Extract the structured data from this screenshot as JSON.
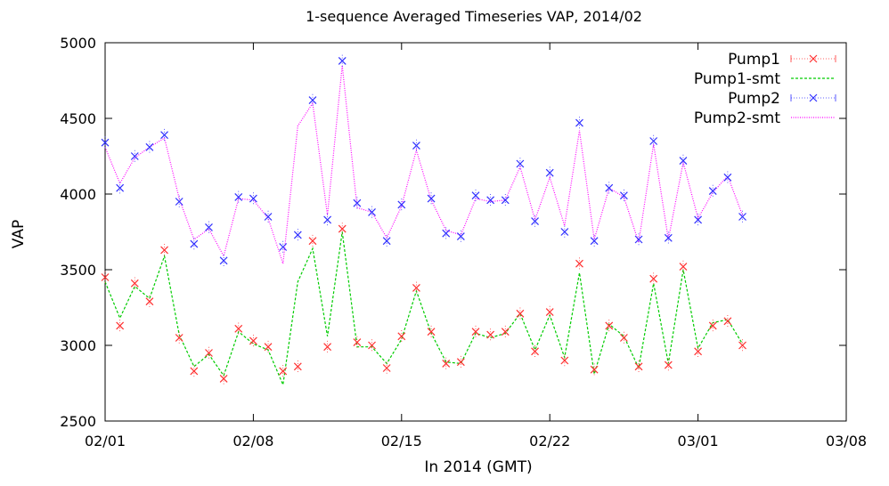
{
  "chart_data": {
    "type": "line",
    "title": "1-sequence Averaged Timeseries VAP, 2014/02",
    "xlabel": "In 2014 (GMT)",
    "ylabel": "VAP",
    "xlim": [
      "2014-02-01",
      "2014-03-08"
    ],
    "ylim": [
      2500,
      5000
    ],
    "x_ticks": [
      "02/01",
      "02/08",
      "02/15",
      "02/22",
      "03/01",
      "03/08"
    ],
    "y_ticks": [
      2500,
      3000,
      3500,
      4000,
      4500,
      5000
    ],
    "grid": false,
    "legend_position": "top-right",
    "series": [
      {
        "name": "Pump1",
        "style": "points-with-errorbars",
        "color": "#ff3030",
        "marker": "x",
        "x": [
          "2014-02-01 00:00",
          "2014-02-01 16:48",
          "2014-02-02 09:36",
          "2014-02-03 02:24",
          "2014-02-03 19:12",
          "2014-02-04 12:00",
          "2014-02-05 04:48",
          "2014-02-05 21:36",
          "2014-02-06 14:24",
          "2014-02-07 07:12",
          "2014-02-08 00:00",
          "2014-02-08 16:48",
          "2014-02-09 09:36",
          "2014-02-10 02:24",
          "2014-02-10 19:12",
          "2014-02-11 12:00",
          "2014-02-12 04:48",
          "2014-02-12 21:36",
          "2014-02-13 14:24",
          "2014-02-14 07:12",
          "2014-02-15 00:00",
          "2014-02-15 16:48",
          "2014-02-16 09:36",
          "2014-02-17 02:24",
          "2014-02-17 19:12",
          "2014-02-18 12:00",
          "2014-02-19 04:48",
          "2014-02-19 21:36",
          "2014-02-20 14:24",
          "2014-02-21 07:12",
          "2014-02-22 00:00",
          "2014-02-22 16:48",
          "2014-02-23 09:36",
          "2014-02-24 02:24",
          "2014-02-24 19:12",
          "2014-02-25 12:00",
          "2014-02-26 04:48",
          "2014-02-26 21:36",
          "2014-02-27 14:24",
          "2014-02-28 07:12",
          "2014-03-01 00:00",
          "2014-03-01 16:48",
          "2014-03-02 09:36",
          "2014-03-03 02:24"
        ],
        "values": [
          3450,
          3130,
          3410,
          3290,
          3630,
          3050,
          2830,
          2950,
          2780,
          3110,
          3030,
          2990,
          2830,
          2860,
          3690,
          2990,
          3770,
          3020,
          3000,
          2850,
          3060,
          3380,
          3090,
          2880,
          2890,
          3090,
          3070,
          3090,
          3210,
          2960,
          3220,
          2900,
          3540,
          2840,
          3130,
          3050,
          2860,
          3440,
          2870,
          3520,
          2960,
          3130,
          3160,
          3000
        ]
      },
      {
        "name": "Pump1-smt",
        "style": "dashed-line",
        "color": "#00cc00",
        "x": [
          "2014-02-01 00:00",
          "2014-02-01 16:48",
          "2014-02-02 09:36",
          "2014-02-03 02:24",
          "2014-02-03 19:12",
          "2014-02-04 12:00",
          "2014-02-05 04:48",
          "2014-02-05 21:36",
          "2014-02-06 14:24",
          "2014-02-07 07:12",
          "2014-02-08 00:00",
          "2014-02-08 16:48",
          "2014-02-09 09:36",
          "2014-02-10 02:24",
          "2014-02-10 19:12",
          "2014-02-11 12:00",
          "2014-02-12 04:48",
          "2014-02-12 21:36",
          "2014-02-13 14:24",
          "2014-02-14 07:12",
          "2014-02-15 00:00",
          "2014-02-15 16:48",
          "2014-02-16 09:36",
          "2014-02-17 02:24",
          "2014-02-17 19:12",
          "2014-02-18 12:00",
          "2014-02-19 04:48",
          "2014-02-19 21:36",
          "2014-02-20 14:24",
          "2014-02-21 07:12",
          "2014-02-22 00:00",
          "2014-02-22 16:48",
          "2014-02-23 09:36",
          "2014-02-24 02:24",
          "2014-02-24 19:12",
          "2014-02-25 12:00",
          "2014-02-26 04:48",
          "2014-02-26 21:36",
          "2014-02-27 14:24",
          "2014-02-28 07:12",
          "2014-03-01 00:00",
          "2014-03-01 16:48",
          "2014-03-02 09:36",
          "2014-03-03 02:24"
        ],
        "values": [
          3420,
          3180,
          3390,
          3310,
          3590,
          3070,
          2860,
          2940,
          2800,
          3090,
          3010,
          2970,
          2740,
          3420,
          3640,
          3060,
          3750,
          2990,
          2990,
          2880,
          3040,
          3360,
          3080,
          2890,
          2880,
          3080,
          3050,
          3080,
          3210,
          2970,
          3200,
          2920,
          3480,
          2810,
          3140,
          3060,
          2850,
          3410,
          2880,
          3500,
          2980,
          3150,
          3170,
          3010
        ]
      },
      {
        "name": "Pump2",
        "style": "points-with-errorbars",
        "color": "#3030ff",
        "marker": "x",
        "x": [
          "2014-02-01 00:00",
          "2014-02-01 16:48",
          "2014-02-02 09:36",
          "2014-02-03 02:24",
          "2014-02-03 19:12",
          "2014-02-04 12:00",
          "2014-02-05 04:48",
          "2014-02-05 21:36",
          "2014-02-06 14:24",
          "2014-02-07 07:12",
          "2014-02-08 00:00",
          "2014-02-08 16:48",
          "2014-02-09 09:36",
          "2014-02-10 02:24",
          "2014-02-10 19:12",
          "2014-02-11 12:00",
          "2014-02-12 04:48",
          "2014-02-12 21:36",
          "2014-02-13 14:24",
          "2014-02-14 07:12",
          "2014-02-15 00:00",
          "2014-02-15 16:48",
          "2014-02-16 09:36",
          "2014-02-17 02:24",
          "2014-02-17 19:12",
          "2014-02-18 12:00",
          "2014-02-19 04:48",
          "2014-02-19 21:36",
          "2014-02-20 14:24",
          "2014-02-21 07:12",
          "2014-02-22 00:00",
          "2014-02-22 16:48",
          "2014-02-23 09:36",
          "2014-02-24 02:24",
          "2014-02-24 19:12",
          "2014-02-25 12:00",
          "2014-02-26 04:48",
          "2014-02-26 21:36",
          "2014-02-27 14:24",
          "2014-02-28 07:12",
          "2014-03-01 00:00",
          "2014-03-01 16:48",
          "2014-03-02 09:36",
          "2014-03-03 02:24"
        ],
        "values": [
          4340,
          4040,
          4250,
          4310,
          4390,
          3950,
          3670,
          3780,
          3560,
          3980,
          3970,
          3850,
          3650,
          3730,
          4620,
          3830,
          4880,
          3940,
          3880,
          3690,
          3930,
          4320,
          3970,
          3740,
          3720,
          3990,
          3960,
          3960,
          4200,
          3820,
          4140,
          3750,
          4470,
          3690,
          4040,
          3990,
          3700,
          4350,
          3710,
          4220,
          3830,
          4020,
          4110,
          3850
        ]
      },
      {
        "name": "Pump2-smt",
        "style": "dotted-line",
        "color": "#ff00ff",
        "x": [
          "2014-02-01 00:00",
          "2014-02-01 16:48",
          "2014-02-02 09:36",
          "2014-02-03 02:24",
          "2014-02-03 19:12",
          "2014-02-04 12:00",
          "2014-02-05 04:48",
          "2014-02-05 21:36",
          "2014-02-06 14:24",
          "2014-02-07 07:12",
          "2014-02-08 00:00",
          "2014-02-08 16:48",
          "2014-02-09 09:36",
          "2014-02-10 02:24",
          "2014-02-10 19:12",
          "2014-02-11 12:00",
          "2014-02-12 04:48",
          "2014-02-12 21:36",
          "2014-02-13 14:24",
          "2014-02-14 07:12",
          "2014-02-15 00:00",
          "2014-02-15 16:48",
          "2014-02-16 09:36",
          "2014-02-17 02:24",
          "2014-02-17 19:12",
          "2014-02-18 12:00",
          "2014-02-19 04:48",
          "2014-02-19 21:36",
          "2014-02-20 14:24",
          "2014-02-21 07:12",
          "2014-02-22 00:00",
          "2014-02-22 16:48",
          "2014-02-23 09:36",
          "2014-02-24 02:24",
          "2014-02-24 19:12",
          "2014-02-25 12:00",
          "2014-02-26 04:48",
          "2014-02-26 21:36",
          "2014-02-27 14:24",
          "2014-02-28 07:12",
          "2014-03-01 00:00",
          "2014-03-01 16:48",
          "2014-03-02 09:36",
          "2014-03-03 02:24"
        ],
        "values": [
          4310,
          4070,
          4240,
          4310,
          4370,
          3970,
          3700,
          3770,
          3590,
          3970,
          3960,
          3840,
          3540,
          4450,
          4600,
          3860,
          4850,
          3910,
          3880,
          3710,
          3920,
          4290,
          3960,
          3760,
          3730,
          3970,
          3950,
          3960,
          4180,
          3830,
          4110,
          3790,
          4420,
          3700,
          4040,
          3980,
          3680,
          4330,
          3700,
          4210,
          3840,
          4010,
          4120,
          3860
        ]
      }
    ]
  }
}
